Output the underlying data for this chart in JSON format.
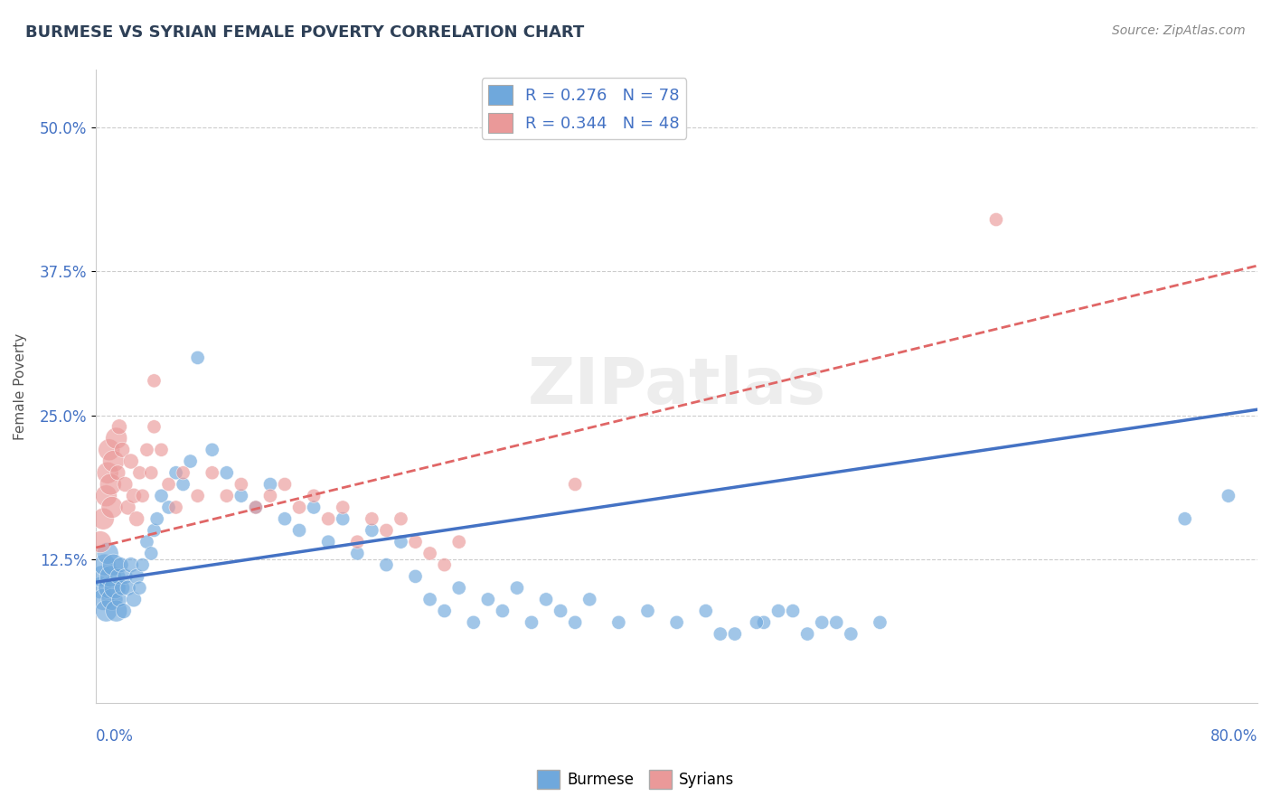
{
  "title": "BURMESE VS SYRIAN FEMALE POVERTY CORRELATION CHART",
  "source": "Source: ZipAtlas.com",
  "ylabel": "Female Poverty",
  "burmese_R": 0.276,
  "burmese_N": 78,
  "syrian_R": 0.344,
  "syrian_N": 48,
  "burmese_color": "#6fa8dc",
  "syrian_color": "#ea9999",
  "burmese_line_color": "#4472c4",
  "syrian_line_color": "#e06666",
  "background_color": "#ffffff",
  "grid_color": "#cccccc",
  "title_color": "#2e4057",
  "ytick_labels": [
    "12.5%",
    "25.0%",
    "37.5%",
    "50.0%"
  ],
  "ytick_values": [
    0.125,
    0.25,
    0.375,
    0.5
  ],
  "xlim": [
    0.0,
    0.8
  ],
  "ylim": [
    0.0,
    0.55
  ],
  "burmese_trend_start_y": 0.105,
  "burmese_trend_end_y": 0.255,
  "syrian_trend_start_y": 0.135,
  "syrian_trend_end_y": 0.38,
  "burmese_x": [
    0.003,
    0.004,
    0.005,
    0.006,
    0.007,
    0.008,
    0.009,
    0.01,
    0.011,
    0.012,
    0.013,
    0.014,
    0.015,
    0.016,
    0.017,
    0.018,
    0.019,
    0.02,
    0.022,
    0.024,
    0.026,
    0.028,
    0.03,
    0.032,
    0.035,
    0.038,
    0.04,
    0.042,
    0.045,
    0.05,
    0.055,
    0.06,
    0.065,
    0.07,
    0.08,
    0.09,
    0.1,
    0.11,
    0.12,
    0.13,
    0.14,
    0.15,
    0.16,
    0.17,
    0.18,
    0.19,
    0.2,
    0.21,
    0.22,
    0.23,
    0.24,
    0.25,
    0.26,
    0.27,
    0.28,
    0.29,
    0.3,
    0.31,
    0.32,
    0.33,
    0.34,
    0.36,
    0.38,
    0.4,
    0.42,
    0.44,
    0.46,
    0.48,
    0.5,
    0.52,
    0.54,
    0.43,
    0.455,
    0.47,
    0.49,
    0.51,
    0.75,
    0.78
  ],
  "burmese_y": [
    0.1,
    0.11,
    0.09,
    0.12,
    0.08,
    0.13,
    0.1,
    0.11,
    0.09,
    0.12,
    0.1,
    0.08,
    0.11,
    0.09,
    0.12,
    0.1,
    0.08,
    0.11,
    0.1,
    0.12,
    0.09,
    0.11,
    0.1,
    0.12,
    0.14,
    0.13,
    0.15,
    0.16,
    0.18,
    0.17,
    0.2,
    0.19,
    0.21,
    0.3,
    0.22,
    0.2,
    0.18,
    0.17,
    0.19,
    0.16,
    0.15,
    0.17,
    0.14,
    0.16,
    0.13,
    0.15,
    0.12,
    0.14,
    0.11,
    0.09,
    0.08,
    0.1,
    0.07,
    0.09,
    0.08,
    0.1,
    0.07,
    0.09,
    0.08,
    0.07,
    0.09,
    0.07,
    0.08,
    0.07,
    0.08,
    0.06,
    0.07,
    0.08,
    0.07,
    0.06,
    0.07,
    0.06,
    0.07,
    0.08,
    0.06,
    0.07,
    0.16,
    0.18
  ],
  "syrian_x": [
    0.003,
    0.005,
    0.007,
    0.008,
    0.009,
    0.01,
    0.011,
    0.012,
    0.014,
    0.015,
    0.016,
    0.018,
    0.02,
    0.022,
    0.024,
    0.026,
    0.028,
    0.03,
    0.032,
    0.035,
    0.038,
    0.04,
    0.045,
    0.05,
    0.055,
    0.06,
    0.07,
    0.08,
    0.09,
    0.1,
    0.11,
    0.12,
    0.13,
    0.14,
    0.15,
    0.16,
    0.17,
    0.18,
    0.19,
    0.2,
    0.21,
    0.22,
    0.23,
    0.24,
    0.25,
    0.33,
    0.62,
    0.04
  ],
  "syrian_y": [
    0.14,
    0.16,
    0.18,
    0.2,
    0.22,
    0.19,
    0.17,
    0.21,
    0.23,
    0.2,
    0.24,
    0.22,
    0.19,
    0.17,
    0.21,
    0.18,
    0.16,
    0.2,
    0.18,
    0.22,
    0.2,
    0.24,
    0.22,
    0.19,
    0.17,
    0.2,
    0.18,
    0.2,
    0.18,
    0.19,
    0.17,
    0.18,
    0.19,
    0.17,
    0.18,
    0.16,
    0.17,
    0.14,
    0.16,
    0.15,
    0.16,
    0.14,
    0.13,
    0.12,
    0.14,
    0.19,
    0.42,
    0.28
  ]
}
